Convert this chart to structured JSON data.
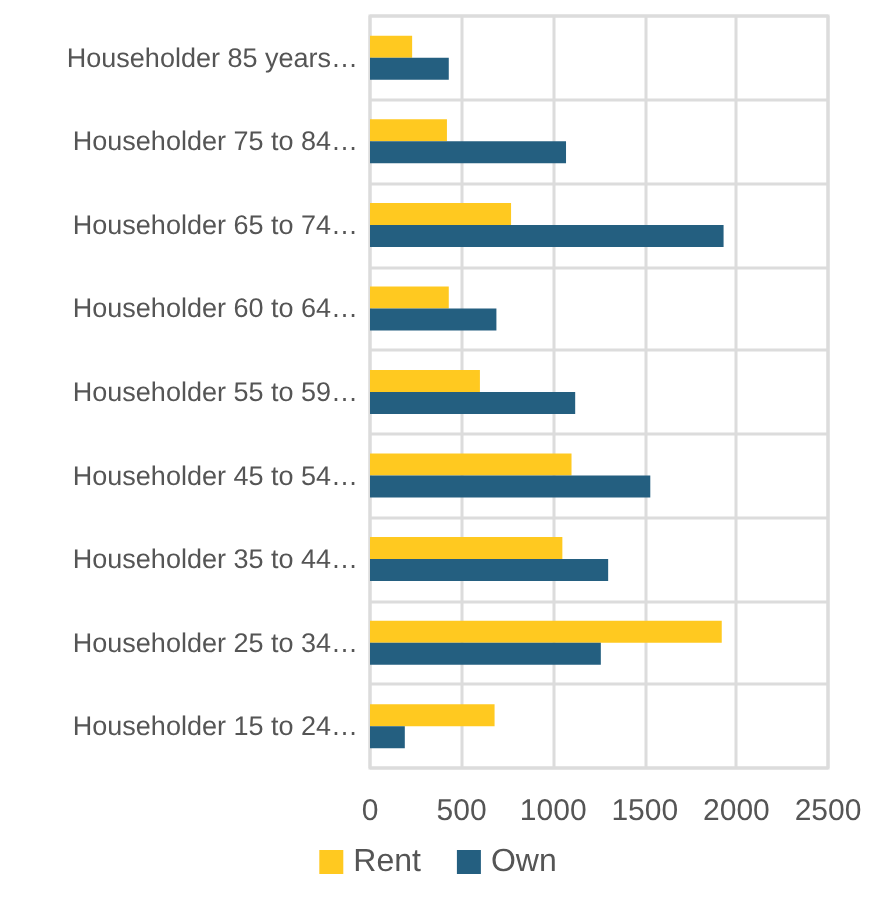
{
  "chart_data": {
    "type": "bar",
    "orientation": "horizontal",
    "categories": [
      "Householder 85 years…",
      "Householder 75 to 84…",
      "Householder 65 to 74…",
      "Householder 60 to 64…",
      "Householder 55 to 59…",
      "Householder 45 to 54…",
      "Householder 35 to 44…",
      "Householder 25 to 34…",
      "Householder 15 to 24…"
    ],
    "series": [
      {
        "name": "Rent",
        "color": "#ffc920",
        "values": [
          230,
          420,
          770,
          430,
          600,
          1100,
          1050,
          1920,
          680
        ]
      },
      {
        "name": "Own",
        "color": "#245f80",
        "values": [
          430,
          1070,
          1930,
          690,
          1120,
          1530,
          1300,
          1260,
          190
        ]
      }
    ],
    "xlim": [
      0,
      2500
    ],
    "xticks": [
      0,
      500,
      1000,
      1500,
      2000,
      2500
    ],
    "grid": true,
    "legend": "bottom"
  }
}
